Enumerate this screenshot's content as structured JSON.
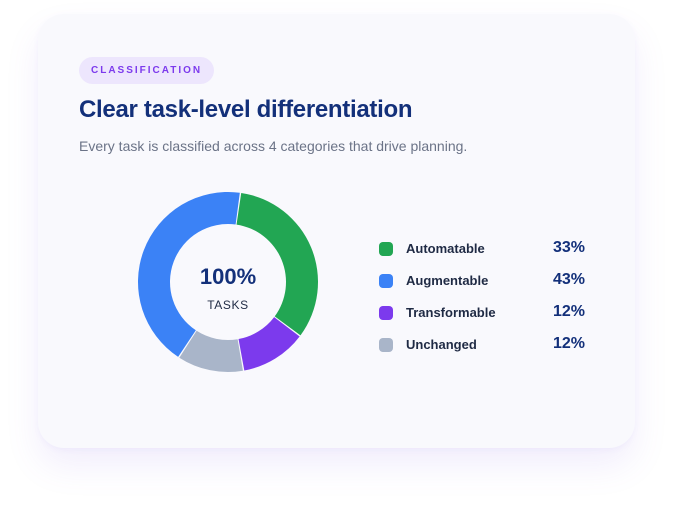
{
  "badge": "CLASSIFICATION",
  "title": "Clear task-level differentiation",
  "subtitle": "Every task is classified across 4 categories that drive planning.",
  "center": {
    "value": "100%",
    "label": "TASKS"
  },
  "colors": {
    "automatable": "#22a653",
    "augmentable": "#3b82f6",
    "transformable": "#7c3aed",
    "unchanged": "#a9b5c9"
  },
  "chart_data": {
    "type": "pie",
    "style": "donut",
    "title": "",
    "categories": [
      "Automatable",
      "Transformable",
      "Unchanged",
      "Augmentable"
    ],
    "values": [
      33,
      12,
      12,
      43
    ],
    "colors": [
      "#22a653",
      "#7c3aed",
      "#a9b5c9",
      "#3b82f6"
    ],
    "legend_position": "right",
    "grid": false
  },
  "legend": [
    {
      "name": "Automatable",
      "pct": "33%",
      "color": "#22a653"
    },
    {
      "name": "Augmentable",
      "pct": "43%",
      "color": "#3b82f6"
    },
    {
      "name": "Transformable",
      "pct": "12%",
      "color": "#7c3aed"
    },
    {
      "name": "Unchanged",
      "pct": "12%",
      "color": "#a9b5c9"
    }
  ]
}
